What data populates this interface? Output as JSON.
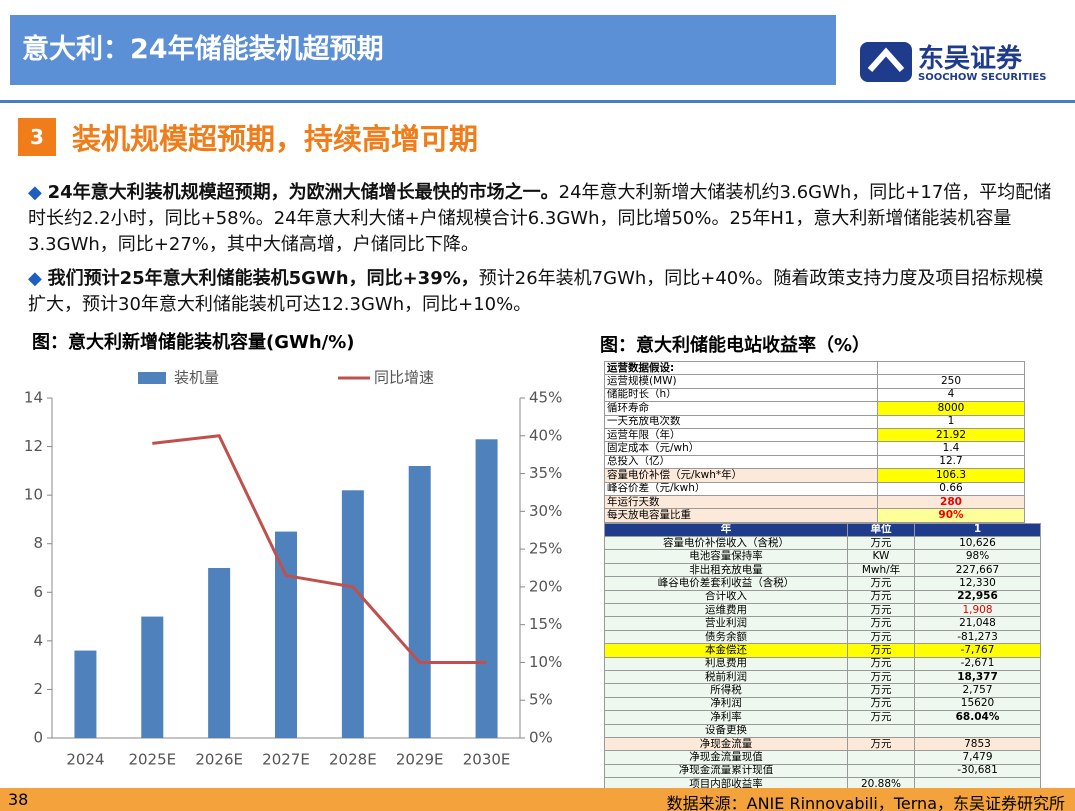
{
  "header": {
    "title": "意大利：24年储能装机超预期",
    "logo_cn": "东吴证券",
    "logo_en": "SOOCHOW SECURITIES"
  },
  "section": {
    "number": "3",
    "title": "装机规模超预期，持续高增可期"
  },
  "bullets": [
    {
      "bold": "24年意大利装机规模超预期，为欧洲大储增长最快的市场之一。",
      "text": "24年意大利新增大储装机约3.6GWh，同比+17倍，平均配储时长约2.2小时，同比+58%。24年意大利大储+户储规模合计6.3GWh，同比增50%。25年H1，意大利新增储能装机容量3.3GWh，同比+27%，其中大储高增，户储同比下降。"
    },
    {
      "bold": "我们预计25年意大利储能装机5GWh，同比+39%，",
      "text": "预计26年装机7GWh，同比+40%。随着政策支持力度及项目招标规模扩大，预计30年意大利储能装机可达12.3GWh，同比+10%。"
    }
  ],
  "chart_data": {
    "type": "bar",
    "title": "图：意大利新增储能装机容量(GWh/%)",
    "categories": [
      "2024",
      "2025E",
      "2026E",
      "2027E",
      "2028E",
      "2029E",
      "2030E"
    ],
    "series": [
      {
        "name": "装机量",
        "type": "bar",
        "color": "#4f81bd",
        "values": [
          3.6,
          5.0,
          7.0,
          8.5,
          10.2,
          11.2,
          12.3
        ]
      },
      {
        "name": "同比增速",
        "type": "line",
        "axis": "y2",
        "color": "#c0504d",
        "values": [
          null,
          39,
          40,
          21.5,
          20,
          10,
          10
        ]
      }
    ],
    "ylim": [
      0,
      14
    ],
    "yticks": [
      0,
      2,
      4,
      6,
      8,
      10,
      12,
      14
    ],
    "y2lim": [
      0,
      45
    ],
    "y2ticks": [
      {
        "value": 0,
        "label": "0%"
      },
      {
        "value": 5,
        "label": "5%"
      },
      {
        "value": 10,
        "label": "10%"
      },
      {
        "value": 15,
        "label": "15%"
      },
      {
        "value": 20,
        "label": "20%"
      },
      {
        "value": 25,
        "label": "25%"
      },
      {
        "value": 30,
        "label": "30%"
      },
      {
        "value": 35,
        "label": "35%"
      },
      {
        "value": 40,
        "label": "40%"
      },
      {
        "value": 45,
        "label": "45%"
      }
    ]
  },
  "table": {
    "title": "图：意大利储能电站收益率（%）",
    "params": [
      [
        "运营数据假设:",
        null
      ],
      [
        "运营规模(MW)",
        "250"
      ],
      [
        "储能时长（h）",
        "4"
      ],
      [
        "循环寿命",
        "8000"
      ],
      [
        "一天充放电次数",
        "1"
      ],
      [
        "运营年限（年）",
        "21.92"
      ],
      [
        "固定成本（元/wh）",
        "1.4"
      ],
      [
        "总投入（亿）",
        "12.7"
      ],
      [
        "容量电价补偿（元/kwh*年）",
        "106.3"
      ],
      [
        "峰谷价差（元/kwh）",
        "0.66"
      ],
      [
        "年运行天数",
        "280"
      ],
      [
        "每天放电容量比重",
        "90%"
      ]
    ],
    "header": [
      "年",
      "单位",
      "1"
    ],
    "rows": [
      [
        "容量电价补偿收入（含税）",
        "万元",
        "10,626"
      ],
      [
        "电池容量保持率",
        "KW",
        "98%"
      ],
      [
        "非出租充放电量",
        "Mwh/年",
        "227,667"
      ],
      [
        "峰谷电价差套利收益（含税）",
        "万元",
        "12,330"
      ],
      [
        "合计收入",
        "万元",
        "22,956"
      ],
      [
        "运维费用",
        "万元",
        "1,908"
      ],
      [
        "营业利润",
        "万元",
        "21,048"
      ],
      [
        "债务余额",
        "万元",
        "-81,273"
      ],
      [
        "本金偿还",
        "万元",
        "-7,767"
      ],
      [
        "利息费用",
        "万元",
        "-2,671"
      ],
      [
        "税前利润",
        "万元",
        "18,377"
      ],
      [
        "所得税",
        "万元",
        "2,757"
      ],
      [
        "净利润",
        "万元",
        "15620"
      ],
      [
        "净利率",
        "万元",
        "68.04%"
      ],
      [
        "设备更换",
        null,
        null
      ],
      [
        "净现金流量",
        "万元",
        "7853"
      ],
      [
        "净现金流量现值",
        null,
        "7,479"
      ],
      [
        "净现金流量累计现值",
        null,
        "-30,681"
      ],
      [
        "项目内部收益率",
        "20.88%",
        null
      ]
    ]
  },
  "footer": {
    "page": "38",
    "source": "数据来源：ANIE Rinnovabili，Terna，东吴证券研究所"
  }
}
